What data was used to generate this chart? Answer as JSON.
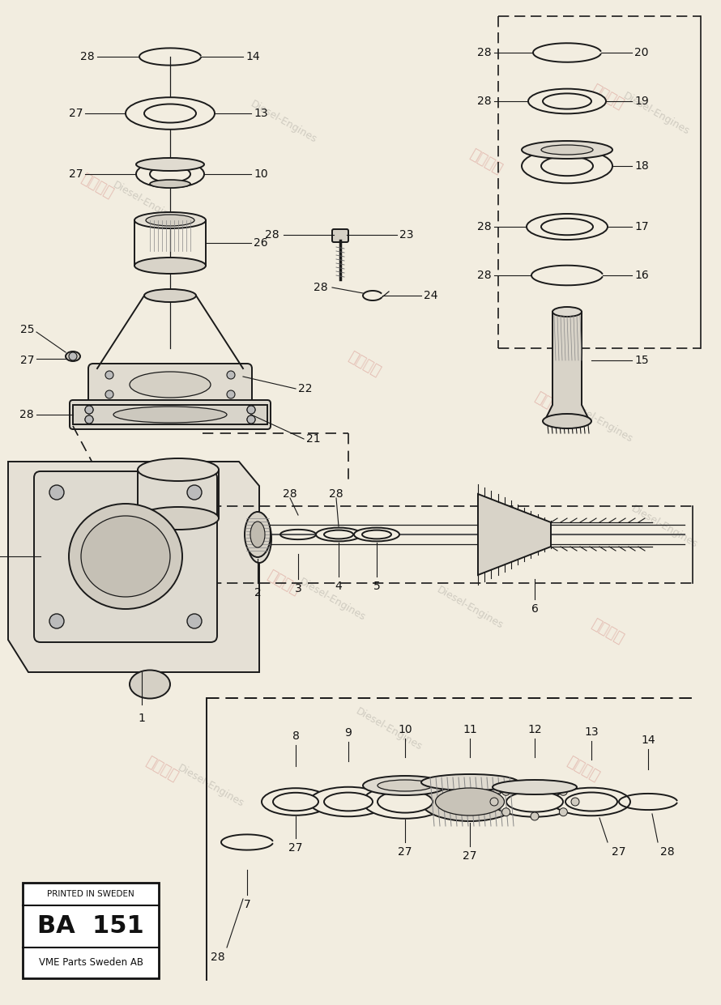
{
  "background_color": "#f2ede0",
  "line_color": "#1a1a1a",
  "label_box": {
    "line1": "VME Parts Sweden AB",
    "line2": "BA  151",
    "line3": "PRINTED IN SWEDEN"
  }
}
